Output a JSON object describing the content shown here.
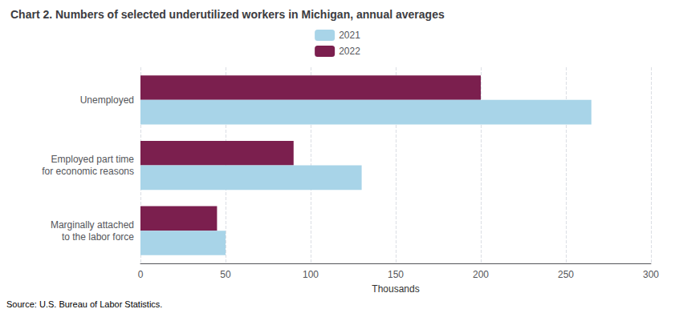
{
  "chart_data": {
    "type": "bar",
    "orientation": "horizontal",
    "title": "Chart 2. Numbers of selected underutilized workers in Michigan, annual averages",
    "categories": [
      "Marginally attached\nto the labor force",
      "Employed part time\nfor economic reasons",
      "Unemployed"
    ],
    "series": [
      {
        "name": "2021",
        "color": "#a8d4e8",
        "values": [
          50,
          130,
          265
        ]
      },
      {
        "name": "2022",
        "color": "#7b1f4e",
        "values": [
          45,
          90,
          200
        ]
      }
    ],
    "xlabel": "Thousands",
    "xlim": [
      0,
      300
    ],
    "xticks": [
      0,
      50,
      100,
      150,
      200,
      250,
      300
    ],
    "grid": true,
    "legend": "top",
    "annotations": [
      "Source: U.S. Bureau of Labor Statistics."
    ]
  }
}
